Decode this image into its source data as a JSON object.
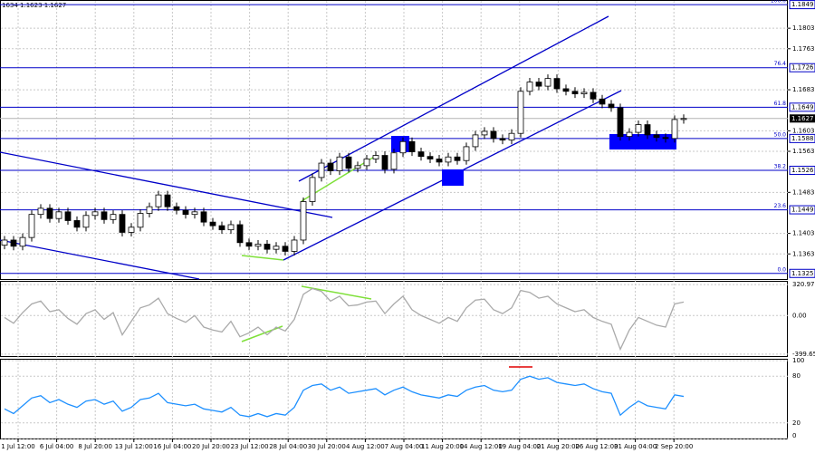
{
  "chart_data": {
    "type": "candlestick",
    "title": "1634 1.1623 1.1627",
    "open": [
      1.138,
      1.139,
      1.1378,
      1.1395,
      1.144,
      1.1452,
      1.1432,
      1.1445,
      1.1428,
      1.1415,
      1.1438,
      1.1445,
      1.143,
      1.144,
      1.1405,
      1.1415,
      1.1442,
      1.1455,
      1.1478,
      1.1455,
      1.1448,
      1.144,
      1.1445,
      1.1425,
      1.1418,
      1.141,
      1.142,
      1.1385,
      1.1378,
      1.1382,
      1.1372,
      1.1378,
      1.1368,
      1.139,
      1.1465,
      1.1512,
      1.154,
      1.1525,
      1.1552,
      1.153,
      1.1535,
      1.1548,
      1.1555,
      1.1528,
      1.156,
      1.1582,
      1.1562,
      1.1553,
      1.1548,
      1.1542,
      1.1552,
      1.1545,
      1.1572,
      1.1595,
      1.1602,
      1.1588,
      1.1585,
      1.1598,
      1.168,
      1.1698,
      1.169,
      1.1705,
      1.1685,
      1.168,
      1.1675,
      1.1678,
      1.1665,
      1.1655,
      1.1648,
      1.1592,
      1.16,
      1.1615,
      1.1595,
      1.159,
      1.1588,
      1.1625
    ],
    "high": [
      1.1398,
      1.1398,
      1.1403,
      1.1448,
      1.146,
      1.146,
      1.1453,
      1.1453,
      1.1436,
      1.1446,
      1.1453,
      1.1453,
      1.1448,
      1.1448,
      1.1423,
      1.145,
      1.1463,
      1.1486,
      1.1486,
      1.1463,
      1.1456,
      1.1453,
      1.1453,
      1.1433,
      1.1426,
      1.1428,
      1.1428,
      1.1393,
      1.139,
      1.139,
      1.1386,
      1.1386,
      1.1398,
      1.1473,
      1.152,
      1.1548,
      1.1548,
      1.156,
      1.156,
      1.1543,
      1.1556,
      1.1563,
      1.1563,
      1.1568,
      1.159,
      1.159,
      1.157,
      1.1561,
      1.1556,
      1.156,
      1.156,
      1.158,
      1.1603,
      1.161,
      1.161,
      1.1596,
      1.1606,
      1.1688,
      1.1706,
      1.1706,
      1.1713,
      1.1713,
      1.1693,
      1.1688,
      1.1686,
      1.1686,
      1.1673,
      1.1663,
      1.1656,
      1.1608,
      1.1623,
      1.1623,
      1.1603,
      1.1598,
      1.1633,
      1.1635
    ],
    "low": [
      1.1372,
      1.137,
      1.137,
      1.1387,
      1.1432,
      1.1424,
      1.1424,
      1.142,
      1.1407,
      1.1407,
      1.143,
      1.1422,
      1.1422,
      1.1397,
      1.1397,
      1.1407,
      1.1434,
      1.1447,
      1.1447,
      1.144,
      1.1432,
      1.1432,
      1.1417,
      1.141,
      1.1402,
      1.1402,
      1.1377,
      1.137,
      1.137,
      1.1364,
      1.1364,
      1.136,
      1.136,
      1.1382,
      1.1457,
      1.1504,
      1.1517,
      1.1517,
      1.1522,
      1.1522,
      1.1527,
      1.154,
      1.152,
      1.152,
      1.1552,
      1.1554,
      1.1545,
      1.154,
      1.1534,
      1.1534,
      1.1537,
      1.1537,
      1.1564,
      1.1587,
      1.158,
      1.1577,
      1.1577,
      1.159,
      1.1672,
      1.1682,
      1.1682,
      1.1677,
      1.1672,
      1.1667,
      1.1667,
      1.1657,
      1.1647,
      1.164,
      1.1584,
      1.1584,
      1.1592,
      1.1587,
      1.1582,
      1.158,
      1.158,
      1.1617
    ],
    "close": [
      1.139,
      1.1378,
      1.1395,
      1.144,
      1.1452,
      1.1432,
      1.1445,
      1.1428,
      1.1415,
      1.1438,
      1.1445,
      1.143,
      1.144,
      1.1405,
      1.1415,
      1.1442,
      1.1455,
      1.1478,
      1.1455,
      1.1448,
      1.144,
      1.1445,
      1.1425,
      1.1418,
      1.141,
      1.142,
      1.1385,
      1.1378,
      1.1382,
      1.1372,
      1.1378,
      1.1368,
      1.139,
      1.1465,
      1.1512,
      1.154,
      1.1525,
      1.1552,
      1.153,
      1.1535,
      1.1548,
      1.1555,
      1.1528,
      1.156,
      1.1582,
      1.1562,
      1.1553,
      1.1548,
      1.1542,
      1.1552,
      1.1545,
      1.1572,
      1.1595,
      1.1602,
      1.1588,
      1.1585,
      1.1598,
      1.168,
      1.1698,
      1.169,
      1.1705,
      1.1685,
      1.168,
      1.1675,
      1.1678,
      1.1665,
      1.1655,
      1.1648,
      1.1592,
      1.16,
      1.1615,
      1.1595,
      1.159,
      1.1588,
      1.1625,
      1.1627
    ],
    "ylim": [
      1.1314,
      1.1858
    ],
    "yticks": [
      1.1803,
      1.1763,
      1.1683,
      1.1603,
      1.1563,
      1.1483,
      1.1403,
      1.1363
    ],
    "last_price": 1.1627,
    "fib_levels": [
      {
        "value": 1.1849,
        "label": "100.0"
      },
      {
        "value": 1.1726,
        "label": "76.4"
      },
      {
        "value": 1.1649,
        "label": "61.8"
      },
      {
        "value": 1.1588,
        "label": "50.0"
      },
      {
        "value": 1.1526,
        "label": "38.2"
      },
      {
        "value": 1.1449,
        "label": "23.6"
      },
      {
        "value": 1.1325,
        "label": "0.0"
      }
    ],
    "x_labels": [
      "1 Jul 12:00",
      "6 Jul 04:00",
      "8 Jul 20:00",
      "13 Jul 12:00",
      "16 Jul 04:00",
      "20 Jul 20:00",
      "23 Jul 12:00",
      "28 Jul 04:00",
      "30 Jul 20:00",
      "4 Aug 12:00",
      "7 Aug 04:00",
      "11 Aug 20:00",
      "14 Aug 12:00",
      "19 Aug 04:00",
      "21 Aug 20:00",
      "26 Aug 12:00",
      "31 Aug 04:00",
      "2 Sep 20:00"
    ],
    "grid": true,
    "cci": {
      "color": "#aaaaaa",
      "ylim": [
        -420,
        350
      ],
      "yticks": [
        320.9724,
        {
          "value": 0,
          "label": "0.00"
        },
        -399.652
      ],
      "values": [
        -20,
        -80,
        30,
        120,
        150,
        40,
        60,
        -30,
        -90,
        20,
        60,
        -40,
        30,
        -200,
        -60,
        80,
        110,
        180,
        20,
        -30,
        -70,
        0,
        -120,
        -150,
        -170,
        -60,
        -220,
        -180,
        -120,
        -200,
        -120,
        -160,
        -40,
        220,
        280,
        250,
        150,
        200,
        100,
        110,
        140,
        150,
        20,
        120,
        200,
        60,
        0,
        -40,
        -80,
        -20,
        -60,
        80,
        160,
        170,
        60,
        20,
        80,
        260,
        240,
        180,
        200,
        120,
        80,
        40,
        60,
        -20,
        -60,
        -90,
        -350,
        -150,
        -20,
        -60,
        -100,
        -120,
        120,
        140
      ]
    },
    "rsi": {
      "color": "#1e90ff",
      "ylim": [
        0,
        100
      ],
      "yticks": [
        100,
        80,
        20,
        0
      ],
      "values": [
        38,
        32,
        42,
        52,
        55,
        46,
        50,
        44,
        40,
        48,
        50,
        44,
        48,
        35,
        40,
        50,
        52,
        58,
        46,
        44,
        42,
        44,
        38,
        36,
        34,
        40,
        30,
        28,
        32,
        28,
        32,
        30,
        40,
        62,
        68,
        70,
        62,
        66,
        58,
        60,
        62,
        64,
        56,
        62,
        66,
        60,
        56,
        54,
        52,
        56,
        54,
        62,
        66,
        68,
        62,
        60,
        62,
        76,
        80,
        76,
        78,
        72,
        70,
        68,
        70,
        64,
        60,
        58,
        30,
        40,
        48,
        42,
        40,
        38,
        56,
        54
      ]
    }
  }
}
